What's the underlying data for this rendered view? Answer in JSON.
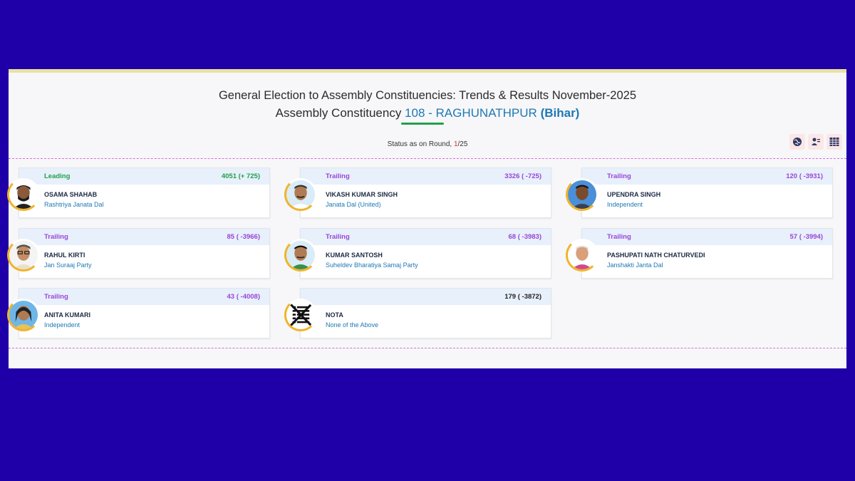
{
  "header": {
    "title": "General Election to Assembly Constituencies: Trends & Results November-2025",
    "subtitle_prefix": "Assembly Constituency ",
    "constituency": "108 - RAGHUNATHPUR",
    "state": "(Bihar)"
  },
  "status": {
    "label": "Status as on Round, ",
    "current_round": "1",
    "total_rounds": "/25"
  },
  "toolbar": {
    "icons": [
      "globe-icon",
      "user-list-icon",
      "table-icon"
    ]
  },
  "candidates": [
    {
      "status": "Leading",
      "votes": "4051 (+ 725)",
      "name": "OSAMA SHAHAB",
      "party": "Rashtriya Janata Dal"
    },
    {
      "status": "Trailing",
      "votes": "3326 ( -725)",
      "name": "VIKASH KUMAR SINGH",
      "party": "Janata Dal (United)"
    },
    {
      "status": "Trailing",
      "votes": "120 ( -3931)",
      "name": "UPENDRA SINGH",
      "party": "Independent"
    },
    {
      "status": "Trailing",
      "votes": "85 ( -3966)",
      "name": "RAHUL KIRTI",
      "party": "Jan Suraaj Party"
    },
    {
      "status": "Trailing",
      "votes": "68 ( -3983)",
      "name": "KUMAR SANTOSH",
      "party": "Suheldev Bharatiya Samaj Party"
    },
    {
      "status": "Trailing",
      "votes": "57 ( -3994)",
      "name": "PASHUPATI NATH CHATURVEDI",
      "party": "Janshakti Janta Dal"
    },
    {
      "status": "Trailing",
      "votes": "43 ( -4008)",
      "name": "ANITA KUMARI",
      "party": "Independent"
    },
    {
      "status": "",
      "votes": "179 ( -3872)",
      "name": "NOTA",
      "party": "None of the Above"
    }
  ],
  "colors": {
    "background": "#1f00a8",
    "leading": "#21a04b",
    "trailing": "#9a45d6",
    "party_link": "#1e78b4"
  }
}
